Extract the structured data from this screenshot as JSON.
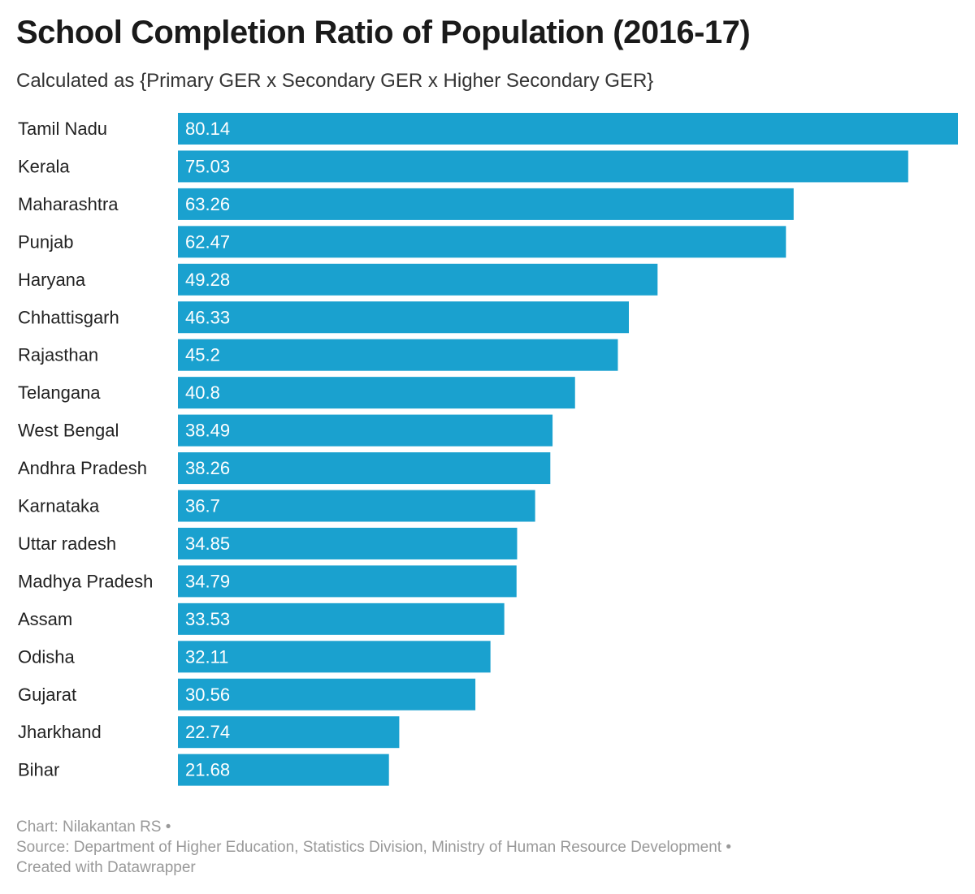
{
  "header": {
    "title": "School Completion Ratio of Population (2016-17)",
    "subtitle": "Calculated as {Primary GER x Secondary GER x Higher Secondary GER}"
  },
  "chart_data": {
    "type": "bar",
    "orientation": "horizontal",
    "title": "School Completion Ratio of Population (2016-17)",
    "subtitle": "Calculated as {Primary GER x Secondary GER x Higher Secondary GER}",
    "categories": [
      "Tamil Nadu",
      "Kerala",
      "Maharashtra",
      "Punjab",
      "Haryana",
      "Chhattisgarh",
      "Rajasthan",
      "Telangana",
      "West Bengal",
      "Andhra Pradesh",
      "Karnataka",
      "Uttar radesh",
      "Madhya Pradesh",
      "Assam",
      "Odisha",
      "Gujarat",
      "Jharkhand",
      "Bihar"
    ],
    "values": [
      80.14,
      75.03,
      63.26,
      62.47,
      49.28,
      46.33,
      45.2,
      40.8,
      38.49,
      38.26,
      36.7,
      34.85,
      34.79,
      33.53,
      32.11,
      30.56,
      22.74,
      21.68
    ],
    "value_labels": [
      "80.14",
      "75.03",
      "63.26",
      "62.47",
      "49.28",
      "46.33",
      "45.2",
      "40.8",
      "38.49",
      "38.26",
      "36.7",
      "34.85",
      "34.79",
      "33.53",
      "32.11",
      "30.56",
      "22.74",
      "21.68"
    ],
    "xlim": [
      0,
      80.14
    ],
    "bar_color": "#1aa1cf",
    "value_label_color": "#ffffff",
    "grid": false,
    "legend": "none"
  },
  "footer": {
    "credit": "Chart: Nilakantan RS •",
    "source": "Source: Department of Higher Education, Statistics Division, Ministry of Human Resource Development •",
    "tool": "Created with Datawrapper"
  }
}
